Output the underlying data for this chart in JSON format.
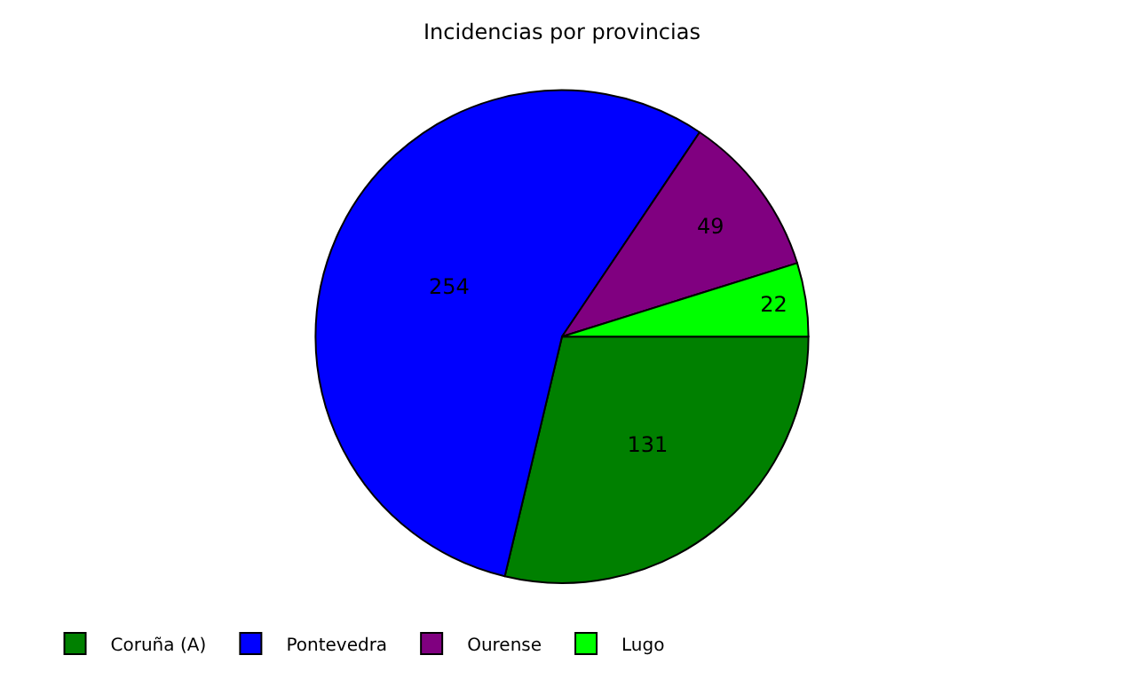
{
  "chart_data": {
    "type": "pie",
    "title": "Incidencias por provincias",
    "categories": [
      "Coruña (A)",
      "Pontevedra",
      "Ourense",
      "Lugo"
    ],
    "values": [
      131,
      254,
      49,
      22
    ],
    "colors": [
      "#008000",
      "#0000ff",
      "#800080",
      "#00ff00"
    ],
    "data_labels": true,
    "legend": "bottom left"
  }
}
